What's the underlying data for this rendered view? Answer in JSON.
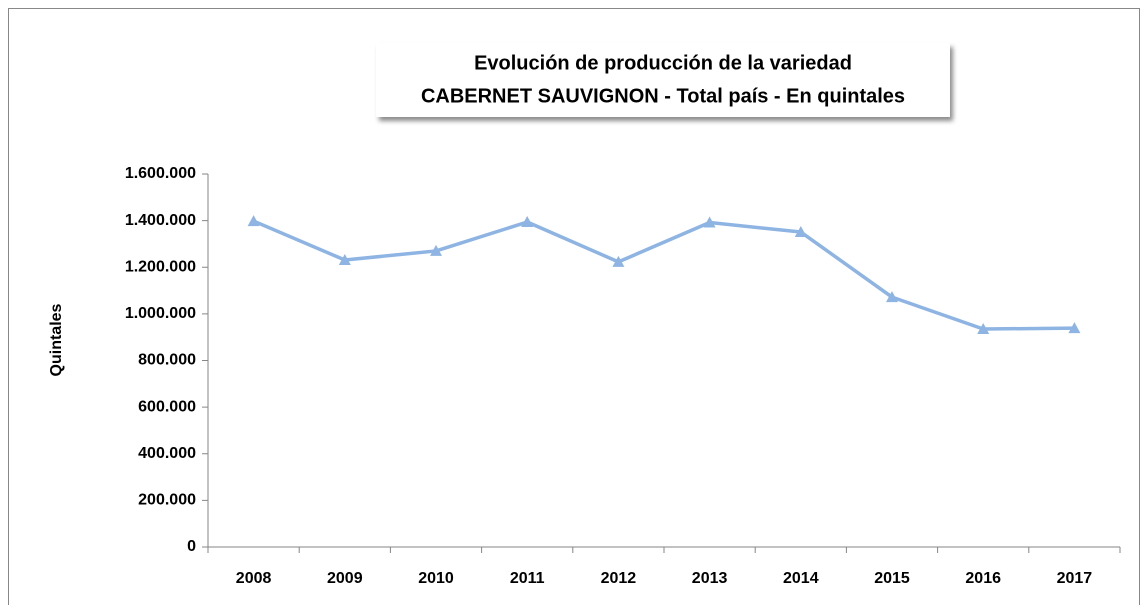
{
  "chart_data": {
    "type": "line",
    "title": "Evolución de producción de la variedad",
    "subtitle": "CABERNET SAUVIGNON - Total país - En quintales",
    "ylabel": "Quintales",
    "categories": [
      "2008",
      "2009",
      "2010",
      "2011",
      "2012",
      "2013",
      "2014",
      "2015",
      "2016",
      "2017"
    ],
    "series": [
      {
        "name": "Cabernet Sauvignon",
        "color": "#8eb4e3",
        "values": [
          1398000,
          1231000,
          1270000,
          1394000,
          1223000,
          1392000,
          1351000,
          1072000,
          935000,
          939000
        ]
      }
    ],
    "ylim": [
      0,
      1600000
    ],
    "yticks": [
      0,
      {
        "value": 200000,
        "label": "200.000"
      },
      {
        "value": 400000,
        "label": "400.000"
      },
      {
        "value": 600000,
        "label": "600.000"
      },
      {
        "value": 800000,
        "label": "800.000"
      },
      {
        "value": 1000000,
        "label": "1.000.000"
      },
      {
        "value": 1200000,
        "label": "1.200.000"
      },
      {
        "value": 1400000,
        "label": "1.400.000"
      },
      {
        "value": 1600000,
        "label": "1.600.000"
      }
    ],
    "grid": false,
    "legend": false
  }
}
